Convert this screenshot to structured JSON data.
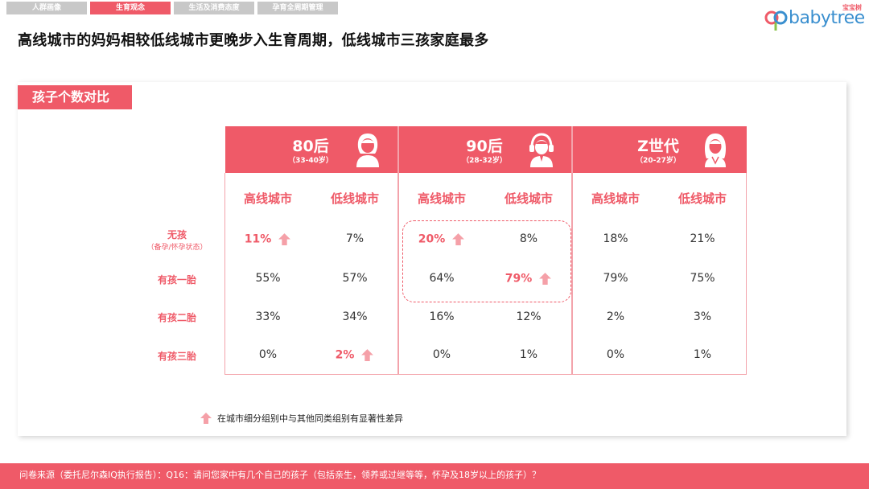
{
  "tabs": [
    {
      "label": "人群画像",
      "active": false
    },
    {
      "label": "生育观念",
      "active": true
    },
    {
      "label": "生活及消费态度",
      "active": false
    },
    {
      "label": "孕育全周期管理",
      "active": false
    }
  ],
  "logo": {
    "text": "babytree",
    "cn": "宝宝树"
  },
  "title": "高线城市的妈妈相较低线城市更晚步入生育周期，低线城市三孩家庭最多",
  "section_label": "孩子个数对比",
  "generations": [
    {
      "name": "80后",
      "age": "（33-40岁）"
    },
    {
      "name": "90后",
      "age": "（28-32岁）"
    },
    {
      "name": "Z世代",
      "age": "（20-27岁）"
    }
  ],
  "columns": [
    "高线城市",
    "低线城市",
    "高线城市",
    "低线城市",
    "高线城市",
    "低线城市"
  ],
  "rows": [
    {
      "label": "无孩",
      "sub": "（备孕/怀孕状态）",
      "values": [
        "11%",
        "7%",
        "20%",
        "8%",
        "18%",
        "21%"
      ],
      "highlight": [
        true,
        false,
        true,
        false,
        false,
        false
      ]
    },
    {
      "label": "有孩一胎",
      "sub": "",
      "values": [
        "55%",
        "57%",
        "64%",
        "79%",
        "79%",
        "75%"
      ],
      "highlight": [
        false,
        false,
        false,
        true,
        false,
        false
      ]
    },
    {
      "label": "有孩二胎",
      "sub": "",
      "values": [
        "33%",
        "34%",
        "16%",
        "12%",
        "2%",
        "3%"
      ],
      "highlight": [
        false,
        false,
        false,
        false,
        false,
        false
      ]
    },
    {
      "label": "有孩三胎",
      "sub": "",
      "values": [
        "0%",
        "2%",
        "0%",
        "1%",
        "0%",
        "1%"
      ],
      "highlight": [
        false,
        true,
        false,
        false,
        false,
        false
      ]
    }
  ],
  "legend": "在城市细分组别中与其他同类组别有显著性差异",
  "footer": "问卷来源（委托尼尔森IQ执行报告）：Q16：请问您家中有几个自己的孩子（包括亲生，领养或过继等等，怀孕及18岁以上的孩子）？",
  "colors": {
    "accent": "#ef5a68",
    "accent_light": "#f3a3ab",
    "arrow": "#f5a0a8",
    "tab_inactive": "#c8c8c8"
  }
}
